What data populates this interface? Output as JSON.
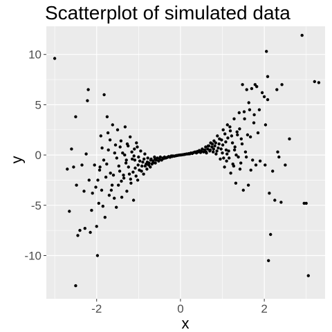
{
  "chart_data": {
    "type": "scatter",
    "title": "Scatterplot of simulated data",
    "xlabel": "x",
    "ylabel": "y",
    "xlim": [
      -3.2,
      3.45
    ],
    "ylim": [
      -14.3,
      12.8
    ],
    "x_ticks": [
      -2,
      0,
      2
    ],
    "x_tick_labels": [
      "-2",
      "0",
      "2"
    ],
    "y_ticks": [
      -10,
      -5,
      0,
      5,
      10
    ],
    "y_tick_labels": [
      "-10",
      "-5",
      "0",
      "5",
      "10"
    ],
    "grid": true,
    "panel_color": "#ebebeb",
    "grid_color": "#ffffff",
    "point_color": "#000000",
    "points": [
      [
        -3.0,
        9.6
      ],
      [
        -2.7,
        -1.4
      ],
      [
        -2.65,
        -5.6
      ],
      [
        -2.6,
        0.6
      ],
      [
        -2.55,
        -1.2
      ],
      [
        -2.5,
        -13.0
      ],
      [
        -2.5,
        3.8
      ],
      [
        -2.48,
        -3.0
      ],
      [
        -2.45,
        -8.0
      ],
      [
        -2.4,
        -7.5
      ],
      [
        -2.35,
        -1.0
      ],
      [
        -2.3,
        -3.6
      ],
      [
        -2.28,
        -7.3
      ],
      [
        -2.25,
        0.1
      ],
      [
        -2.22,
        5.4
      ],
      [
        -2.2,
        6.5
      ],
      [
        -2.18,
        -2.5
      ],
      [
        -2.15,
        -7.7
      ],
      [
        -2.12,
        -5.5
      ],
      [
        -2.1,
        -3.8
      ],
      [
        -2.05,
        -1.0
      ],
      [
        -2.02,
        -3.2
      ],
      [
        -2.0,
        -7.1
      ],
      [
        -1.98,
        -10.0
      ],
      [
        -1.95,
        -4.8
      ],
      [
        -1.92,
        -1.2
      ],
      [
        -1.9,
        1.9
      ],
      [
        -1.88,
        -3.5
      ],
      [
        -1.85,
        -5.1
      ],
      [
        -1.82,
        6.0
      ],
      [
        -1.8,
        -6.2
      ],
      [
        -1.78,
        -2.2
      ],
      [
        -1.75,
        3.8
      ],
      [
        -1.72,
        0.5
      ],
      [
        -1.7,
        -4.0
      ],
      [
        -1.68,
        1.5
      ],
      [
        -1.65,
        -3.5
      ],
      [
        -1.62,
        3.0
      ],
      [
        -1.6,
        -2.0
      ],
      [
        -1.58,
        -4.3
      ],
      [
        -1.55,
        1.0
      ],
      [
        -1.52,
        -0.3
      ],
      [
        -1.5,
        2.5
      ],
      [
        -1.48,
        -3.0
      ],
      [
        -1.45,
        -1.6
      ],
      [
        -1.42,
        1.4
      ],
      [
        -1.4,
        -4.2
      ],
      [
        -1.38,
        0.2
      ],
      [
        -1.35,
        -2.3
      ],
      [
        -1.32,
        2.8
      ],
      [
        -1.3,
        -0.8
      ],
      [
        -1.28,
        -3.6
      ],
      [
        -1.25,
        0.9
      ],
      [
        -1.22,
        -1.9
      ],
      [
        -1.2,
        1.8
      ],
      [
        -1.18,
        -2.8
      ],
      [
        -1.15,
        -0.4
      ],
      [
        -1.12,
        -4.5
      ],
      [
        -1.1,
        0.6
      ],
      [
        -1.08,
        -1.3
      ],
      [
        -1.05,
        1.2
      ],
      [
        -1.02,
        -2.5
      ],
      [
        -1.0,
        -0.2
      ],
      [
        -0.98,
        -1.5
      ],
      [
        -0.95,
        0.4
      ],
      [
        -0.92,
        -1.1
      ],
      [
        -0.9,
        -0.7
      ],
      [
        -0.88,
        -1.9
      ],
      [
        -0.85,
        0.1
      ],
      [
        -0.82,
        -0.9
      ],
      [
        -0.8,
        -1.4
      ],
      [
        -0.78,
        -0.3
      ],
      [
        -0.75,
        -0.8
      ],
      [
        -0.72,
        -1.2
      ],
      [
        -0.7,
        -0.4
      ],
      [
        -0.68,
        -0.9
      ],
      [
        -0.65,
        -0.6
      ],
      [
        -0.62,
        -0.2
      ],
      [
        -0.6,
        -0.8
      ],
      [
        -0.58,
        -0.5
      ],
      [
        -0.55,
        -0.3
      ],
      [
        -0.52,
        -0.6
      ],
      [
        -0.5,
        -0.4
      ],
      [
        -0.48,
        -0.2
      ],
      [
        -0.45,
        -0.5
      ],
      [
        -0.42,
        -0.3
      ],
      [
        -0.4,
        -0.35
      ],
      [
        -0.38,
        -0.2
      ],
      [
        -0.35,
        -0.3
      ],
      [
        -0.32,
        -0.25
      ],
      [
        -0.3,
        -0.2
      ],
      [
        -0.28,
        -0.15
      ],
      [
        -0.25,
        -0.22
      ],
      [
        -0.22,
        -0.1
      ],
      [
        -0.2,
        -0.15
      ],
      [
        -0.18,
        -0.1
      ],
      [
        -0.15,
        -0.12
      ],
      [
        -0.12,
        -0.08
      ],
      [
        -0.1,
        -0.06
      ],
      [
        -0.08,
        -0.05
      ],
      [
        -0.05,
        -0.03
      ],
      [
        -0.02,
        -0.01
      ],
      [
        0.0,
        0.0
      ],
      [
        0.02,
        0.01
      ],
      [
        0.05,
        0.03
      ],
      [
        0.08,
        0.05
      ],
      [
        0.1,
        0.06
      ],
      [
        0.12,
        0.08
      ],
      [
        0.15,
        0.1
      ],
      [
        0.18,
        0.1
      ],
      [
        0.2,
        0.14
      ],
      [
        0.22,
        0.12
      ],
      [
        0.25,
        0.2
      ],
      [
        0.28,
        0.15
      ],
      [
        0.3,
        0.22
      ],
      [
        0.32,
        0.25
      ],
      [
        0.35,
        0.3
      ],
      [
        0.38,
        0.2
      ],
      [
        0.4,
        0.35
      ],
      [
        0.42,
        0.3
      ],
      [
        0.45,
        0.45
      ],
      [
        0.48,
        0.25
      ],
      [
        0.5,
        0.4
      ],
      [
        0.52,
        0.6
      ],
      [
        0.55,
        0.3
      ],
      [
        0.58,
        0.5
      ],
      [
        0.6,
        0.8
      ],
      [
        0.62,
        0.2
      ],
      [
        0.65,
        0.6
      ],
      [
        0.68,
        0.9
      ],
      [
        0.7,
        0.4
      ],
      [
        0.72,
        1.2
      ],
      [
        0.75,
        0.8
      ],
      [
        0.78,
        0.3
      ],
      [
        0.8,
        1.4
      ],
      [
        0.82,
        0.9
      ],
      [
        0.85,
        0.1
      ],
      [
        0.88,
        1.9
      ],
      [
        0.9,
        0.7
      ],
      [
        0.92,
        1.1
      ],
      [
        0.95,
        -0.4
      ],
      [
        0.98,
        1.5
      ],
      [
        1.0,
        0.2
      ],
      [
        1.02,
        2.5
      ],
      [
        1.05,
        -1.2
      ],
      [
        1.08,
        1.3
      ],
      [
        1.1,
        -0.6
      ],
      [
        1.12,
        3.0
      ],
      [
        1.15,
        0.4
      ],
      [
        1.18,
        2.8
      ],
      [
        1.2,
        -1.8
      ],
      [
        1.22,
        1.9
      ],
      [
        1.25,
        -0.9
      ],
      [
        1.28,
        3.6
      ],
      [
        1.3,
        0.8
      ],
      [
        1.32,
        -2.8
      ],
      [
        1.35,
        2.3
      ],
      [
        1.38,
        -0.2
      ],
      [
        1.4,
        4.2
      ],
      [
        1.42,
        -1.4
      ],
      [
        1.45,
        1.6
      ],
      [
        1.48,
        7.0
      ],
      [
        1.5,
        -3.5
      ],
      [
        1.52,
        4.3
      ],
      [
        1.55,
        0.3
      ],
      [
        1.58,
        6.5
      ],
      [
        1.6,
        2.0
      ],
      [
        1.62,
        -3.0
      ],
      [
        1.65,
        4.5
      ],
      [
        1.68,
        -1.5
      ],
      [
        1.7,
        6.6
      ],
      [
        1.72,
        -0.5
      ],
      [
        1.75,
        3.2
      ],
      [
        1.78,
        7.0
      ],
      [
        1.8,
        -1.0
      ],
      [
        1.82,
        6.8
      ],
      [
        1.85,
        2.2
      ],
      [
        1.88,
        4.5
      ],
      [
        1.9,
        -0.6
      ],
      [
        1.95,
        6.2
      ],
      [
        2.0,
        5.8
      ],
      [
        2.02,
        -1.0
      ],
      [
        2.03,
        3.0
      ],
      [
        2.05,
        10.3
      ],
      [
        2.08,
        5.5
      ],
      [
        2.08,
        7.8
      ],
      [
        2.1,
        -10.5
      ],
      [
        2.12,
        -3.8
      ],
      [
        2.15,
        -7.9
      ],
      [
        2.2,
        -1.6
      ],
      [
        2.25,
        -4.5
      ],
      [
        2.3,
        6.5
      ],
      [
        2.32,
        0.3
      ],
      [
        2.35,
        -0.2
      ],
      [
        2.4,
        -4.7
      ],
      [
        2.42,
        7.0
      ],
      [
        2.5,
        -1.0
      ],
      [
        2.6,
        1.6
      ],
      [
        2.9,
        11.9
      ],
      [
        2.95,
        -4.8
      ],
      [
        3.0,
        -4.8
      ],
      [
        3.05,
        -12.0
      ],
      [
        3.2,
        7.3
      ],
      [
        3.3,
        7.2
      ],
      [
        -1.93,
        -1.5
      ],
      [
        -1.87,
        0.7
      ],
      [
        -1.76,
        -0.9
      ],
      [
        -1.67,
        -1.8
      ],
      [
        -1.57,
        0.2
      ],
      [
        -1.47,
        -1.1
      ],
      [
        -1.41,
        -2.6
      ],
      [
        -1.33,
        0.0
      ],
      [
        -1.27,
        1.1
      ],
      [
        -1.24,
        -1.2
      ],
      [
        -1.16,
        0.3
      ],
      [
        -1.13,
        -1.7
      ],
      [
        -1.09,
        -0.5
      ],
      [
        -1.06,
        -2.1
      ],
      [
        -1.03,
        0.8
      ],
      [
        -1.01,
        -1.0
      ],
      [
        -0.97,
        -0.6
      ],
      [
        -0.93,
        -1.6
      ],
      [
        -0.87,
        -0.4
      ],
      [
        -0.84,
        -1.1
      ],
      [
        -0.79,
        -0.7
      ],
      [
        -0.76,
        -1.0
      ],
      [
        -0.71,
        -0.5
      ],
      [
        -0.66,
        -0.8
      ],
      [
        -0.61,
        -0.4
      ],
      [
        -1.44,
        0.8
      ],
      [
        -1.36,
        -2.0
      ],
      [
        -1.29,
        -0.5
      ],
      [
        -1.19,
        -2.4
      ],
      [
        -1.11,
        -0.1
      ],
      [
        0.61,
        0.3
      ],
      [
        0.66,
        0.9
      ],
      [
        0.71,
        0.5
      ],
      [
        0.76,
        1.1
      ],
      [
        0.79,
        0.6
      ],
      [
        0.84,
        1.2
      ],
      [
        0.87,
        0.4
      ],
      [
        0.93,
        1.6
      ],
      [
        0.97,
        0.6
      ],
      [
        1.01,
        1.0
      ],
      [
        1.03,
        -0.3
      ],
      [
        1.06,
        2.1
      ],
      [
        1.09,
        0.5
      ],
      [
        1.13,
        1.7
      ],
      [
        1.16,
        -0.3
      ],
      [
        1.24,
        1.2
      ],
      [
        1.27,
        -1.1
      ],
      [
        1.33,
        0.0
      ],
      [
        1.41,
        2.6
      ],
      [
        1.47,
        1.1
      ],
      [
        1.53,
        3.6
      ],
      [
        1.57,
        -0.2
      ],
      [
        1.63,
        5.2
      ],
      [
        1.67,
        1.8
      ],
      [
        1.76,
        4.0
      ],
      [
        1.11,
        0.1
      ],
      [
        1.19,
        2.4
      ],
      [
        1.29,
        0.5
      ],
      [
        1.36,
        2.0
      ],
      [
        1.44,
        -0.8
      ],
      [
        -1.53,
        -5.2
      ],
      [
        -1.63,
        -3.0
      ],
      [
        -1.73,
        2.2
      ],
      [
        -1.83,
        -0.5
      ],
      [
        -1.97,
        -2.5
      ]
    ]
  }
}
